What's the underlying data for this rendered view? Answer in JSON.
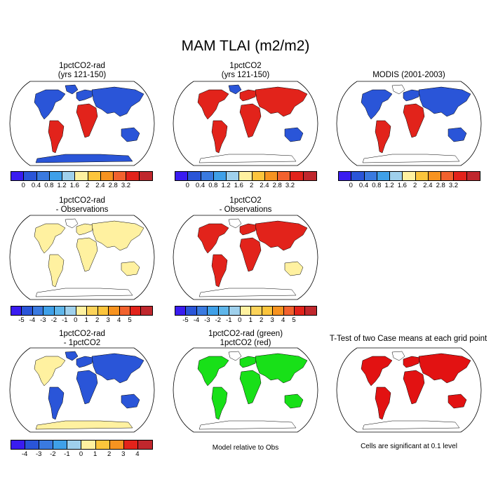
{
  "figure": {
    "title": "MAM TLAI (m2/m2)"
  },
  "panels": {
    "p1": {
      "line1": "1pctCO2-rad",
      "line2": "(yrs 121-150)"
    },
    "p2": {
      "line1": "1pctCO2",
      "line2": "(yrs 121-150)"
    },
    "p3": {
      "line1": "MODIS (2001-2003)"
    },
    "p4": {
      "line1": "1pctCO2-rad",
      "line2": "- Observations"
    },
    "p5": {
      "line1": "1pctCO2",
      "line2": "- Observations"
    },
    "p7": {
      "line1": "1pctCO2-rad",
      "line2": "- 1pctCO2"
    },
    "p8": {
      "line1": "1pctCO2-rad (green)",
      "line2": "1pctCO2 (red)"
    },
    "p9": {
      "line1": "T-Test of two Case means at each grid point"
    }
  },
  "notes": {
    "p8": "Model relative to Obs",
    "p9": "Cells are significant at 0.1 level"
  },
  "colorbars": {
    "row1": {
      "ticks": [
        "0",
        "0.4",
        "0.8",
        "1.2",
        "1.6",
        "2",
        "2.4",
        "2.8",
        "3.2"
      ],
      "colors": [
        "#3a1cf0",
        "#2a55d8",
        "#3a7ae0",
        "#3fa0e8",
        "#9fd0ec",
        "#fff1a0",
        "#fcc53c",
        "#f79320",
        "#f2622e",
        "#e2231b",
        "#c0272d"
      ]
    },
    "row2": {
      "ticks": [
        "-5",
        "-4",
        "-3",
        "-2",
        "-1",
        "0",
        "1",
        "2",
        "3",
        "4",
        "5"
      ],
      "colors": [
        "#3a1cf0",
        "#2a55d8",
        "#3a7ae0",
        "#3fa0e8",
        "#5fb6ea",
        "#9fd0ec",
        "#fff1a0",
        "#fcd35a",
        "#fcc53c",
        "#f79320",
        "#f2622e",
        "#e2231b",
        "#c0272d"
      ]
    },
    "row3": {
      "ticks": [
        "-4",
        "-3",
        "-2",
        "-1",
        "0",
        "1",
        "2",
        "3",
        "4"
      ],
      "colors": [
        "#3a1cf0",
        "#2a55d8",
        "#3a7ae0",
        "#3fa0e8",
        "#9fd0ec",
        "#fff1a0",
        "#fcc53c",
        "#f79320",
        "#e2231b",
        "#c0272d"
      ]
    }
  },
  "palette": {
    "ocean": "#ffffff",
    "low": "#2a55d8",
    "mid": "#fff1a0",
    "high": "#e2231b",
    "green": "#18e018",
    "red": "#e21212"
  }
}
